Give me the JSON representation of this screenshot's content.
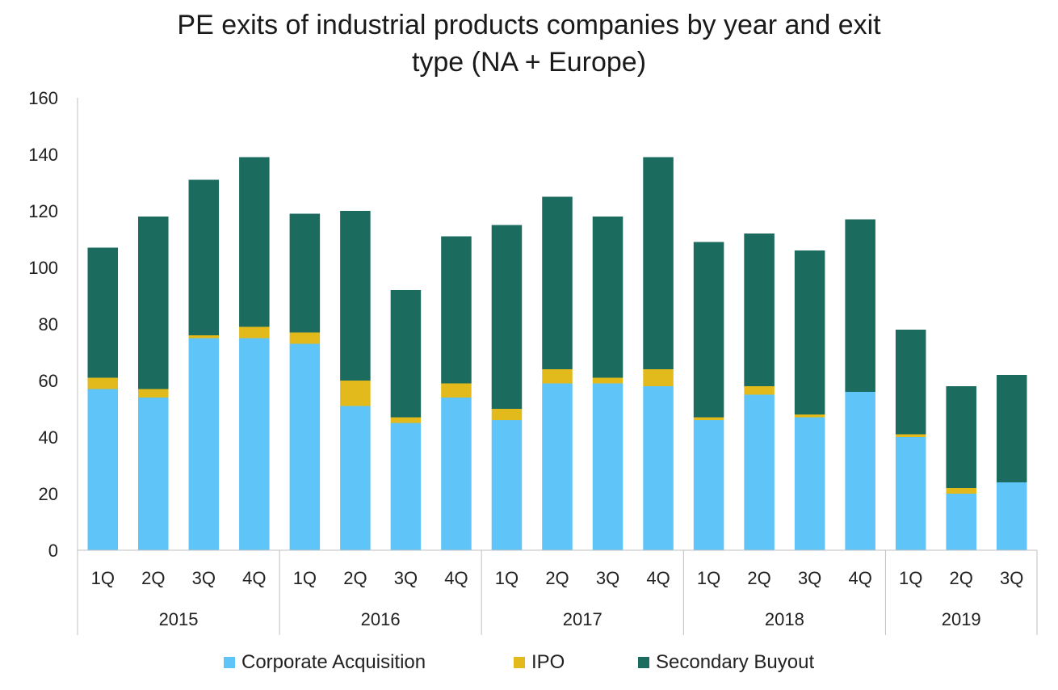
{
  "chart_data": {
    "type": "bar",
    "stacked": true,
    "title_lines": [
      "PE exits of industrial products companies by year and exit",
      "type (NA + Europe)"
    ],
    "categories": [
      "1Q",
      "2Q",
      "3Q",
      "4Q",
      "1Q",
      "2Q",
      "3Q",
      "4Q",
      "1Q",
      "2Q",
      "3Q",
      "4Q",
      "1Q",
      "2Q",
      "3Q",
      "4Q",
      "1Q",
      "2Q",
      "3Q"
    ],
    "groups": [
      {
        "label": "2015",
        "count": 4
      },
      {
        "label": "2016",
        "count": 4
      },
      {
        "label": "2017",
        "count": 4
      },
      {
        "label": "2018",
        "count": 4
      },
      {
        "label": "2019",
        "count": 3
      }
    ],
    "series": [
      {
        "name": "Corporate Acquisition",
        "color": "#5FC4F8",
        "values": [
          57,
          54,
          75,
          75,
          73,
          51,
          45,
          54,
          46,
          59,
          59,
          58,
          46,
          55,
          47,
          56,
          40,
          20,
          24
        ]
      },
      {
        "name": "IPO",
        "color": "#E3BA1C",
        "values": [
          4,
          3,
          1,
          4,
          4,
          9,
          2,
          5,
          4,
          5,
          2,
          6,
          1,
          3,
          1,
          0,
          1,
          2,
          0
        ]
      },
      {
        "name": "Secondary Buyout",
        "color": "#1B6B5F",
        "values": [
          46,
          61,
          55,
          60,
          42,
          60,
          45,
          52,
          65,
          61,
          57,
          75,
          62,
          54,
          58,
          61,
          37,
          36,
          38
        ]
      }
    ],
    "ylim": [
      0,
      160
    ],
    "yticks": [
      0,
      20,
      40,
      60,
      80,
      100,
      120,
      140,
      160
    ],
    "grid": false,
    "legend_position": "bottom"
  }
}
